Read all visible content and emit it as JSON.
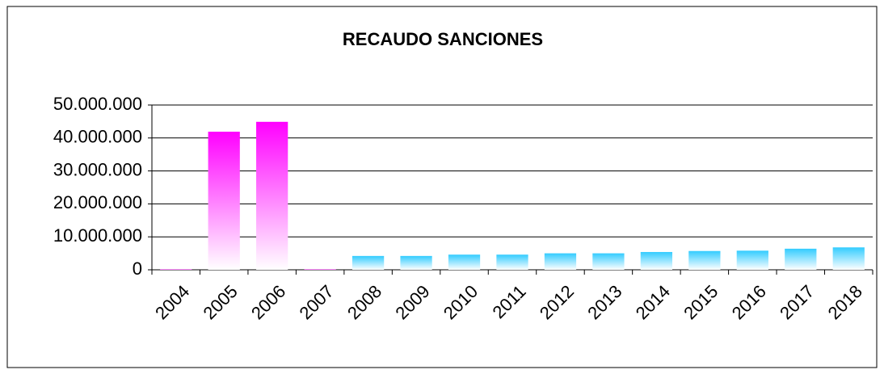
{
  "chart_data": {
    "type": "bar",
    "title": "RECAUDO SANCIONES",
    "categories": [
      "2004",
      "2005",
      "2006",
      "2007",
      "2008",
      "2009",
      "2010",
      "2011",
      "2012",
      "2013",
      "2014",
      "2015",
      "2016",
      "2017",
      "2018"
    ],
    "values": [
      200000,
      41900000,
      44900000,
      200000,
      4200000,
      4200000,
      4600000,
      4600000,
      5000000,
      5000000,
      5400000,
      5700000,
      5800000,
      6400000,
      6800000
    ],
    "colors": [
      "#ff00ff",
      "#ff00ff",
      "#ff00ff",
      "#ff00ff",
      "#33ccff",
      "#33ccff",
      "#33ccff",
      "#33ccff",
      "#33ccff",
      "#33ccff",
      "#33ccff",
      "#33ccff",
      "#33ccff",
      "#33ccff",
      "#33ccff"
    ],
    "ylim": [
      0,
      50000000
    ],
    "yticks": [
      0,
      {
        "value": 10000000,
        "label": "10.000.000"
      },
      {
        "value": 20000000,
        "label": "20.000.000"
      },
      {
        "value": 30000000,
        "label": "30.000.000"
      },
      {
        "value": 40000000,
        "label": "40.000.000"
      },
      {
        "value": 50000000,
        "label": "50.000.000"
      }
    ],
    "grid": true
  }
}
